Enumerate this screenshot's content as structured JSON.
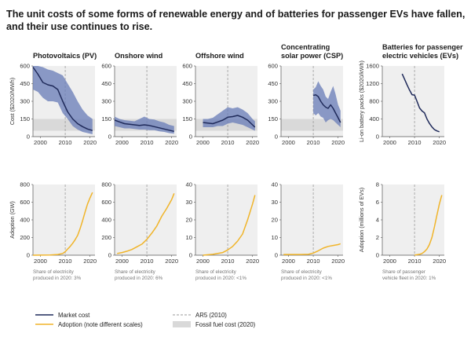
{
  "title_lines": [
    "The unit costs of some forms of renewable energy and of batteries for passenger EVs have fallen,",
    "and their use continues to rise."
  ],
  "colors": {
    "market_cost": "#1f2a5a",
    "band": "#6c7fb8",
    "adoption": "#f0b429",
    "fossil": "#d9d9d9",
    "panel_bg": "#efefef",
    "ar5": "#9a9a9a"
  },
  "legend": {
    "market_cost": "Market cost",
    "adoption": "Adoption (note different scales)",
    "ar5": "AR5 (2010)",
    "fossil": "Fossil fuel cost (2020)"
  },
  "chart_data": [
    {
      "type": "area",
      "name": "pv-cost",
      "title_lines": [
        "Photovoltaics (PV)"
      ],
      "ylabel": "Cost ($2020/MWh)",
      "xlim": [
        1997,
        2022
      ],
      "xticks": [
        2000,
        2010,
        2020
      ],
      "ylim": [
        0,
        600
      ],
      "yticks": [
        0,
        150,
        300,
        450,
        600
      ],
      "ar5": 2010,
      "fossil": [
        50,
        150
      ],
      "x": [
        1997,
        1999,
        2001,
        2003,
        2005,
        2007,
        2009,
        2011,
        2013,
        2015,
        2017,
        2019,
        2021
      ],
      "lower": [
        400,
        380,
        330,
        300,
        300,
        290,
        200,
        150,
        90,
        60,
        40,
        30,
        20
      ],
      "upper": [
        600,
        600,
        590,
        570,
        560,
        540,
        520,
        450,
        380,
        300,
        230,
        180,
        150
      ],
      "values": [
        590,
        530,
        460,
        440,
        430,
        400,
        300,
        210,
        150,
        110,
        85,
        65,
        52
      ]
    },
    {
      "type": "area",
      "name": "wind-cost",
      "title_lines": [
        "Onshore wind"
      ],
      "ylabel": "",
      "xlim": [
        1997,
        2022
      ],
      "xticks": [
        2000,
        2010,
        2020
      ],
      "ylim": [
        0,
        600
      ],
      "yticks": [
        0,
        150,
        300,
        450,
        600
      ],
      "ar5": 2010,
      "fossil": [
        50,
        150
      ],
      "x": [
        1997,
        1999,
        2001,
        2003,
        2005,
        2007,
        2009,
        2011,
        2013,
        2015,
        2017,
        2019,
        2021
      ],
      "lower": [
        90,
        80,
        70,
        70,
        65,
        60,
        60,
        55,
        55,
        45,
        40,
        30,
        25
      ],
      "upper": [
        170,
        150,
        140,
        135,
        130,
        150,
        170,
        150,
        145,
        130,
        120,
        100,
        90
      ],
      "values": [
        140,
        125,
        110,
        105,
        100,
        95,
        100,
        95,
        85,
        75,
        65,
        55,
        45
      ]
    },
    {
      "type": "area",
      "name": "offshore-cost",
      "title_lines": [
        "Offshore wind"
      ],
      "ylabel": "",
      "xlim": [
        1997,
        2022
      ],
      "xticks": [
        2000,
        2010,
        2020
      ],
      "ylim": [
        0,
        600
      ],
      "yticks": [
        0,
        150,
        300,
        450,
        600
      ],
      "ar5": 2010,
      "fossil": [
        50,
        150
      ],
      "x": [
        2000,
        2002,
        2004,
        2006,
        2008,
        2010,
        2012,
        2014,
        2016,
        2018,
        2020,
        2021
      ],
      "lower": [
        80,
        80,
        80,
        90,
        90,
        110,
        120,
        110,
        100,
        80,
        60,
        50
      ],
      "upper": [
        150,
        150,
        160,
        190,
        220,
        250,
        240,
        250,
        230,
        200,
        150,
        130
      ],
      "values": [
        120,
        115,
        110,
        125,
        140,
        165,
        170,
        180,
        165,
        140,
        100,
        80
      ]
    },
    {
      "type": "area",
      "name": "csp-cost",
      "title_lines": [
        "Concentrating",
        "solar power (CSP)"
      ],
      "ylabel": "",
      "xlim": [
        1997,
        2022
      ],
      "xticks": [
        2000,
        2010,
        2020
      ],
      "ylim": [
        0,
        600
      ],
      "yticks": [
        0,
        150,
        300,
        450,
        600
      ],
      "ar5": 2010,
      "fossil": [
        50,
        150
      ],
      "x": [
        2010,
        2011,
        2012,
        2013,
        2014,
        2015,
        2016,
        2017,
        2018,
        2019,
        2020,
        2021
      ],
      "lower": [
        200,
        180,
        200,
        170,
        160,
        120,
        140,
        150,
        140,
        120,
        100,
        80
      ],
      "upper": [
        400,
        420,
        470,
        430,
        400,
        340,
        320,
        380,
        430,
        360,
        270,
        220
      ],
      "values": [
        350,
        355,
        340,
        300,
        270,
        250,
        240,
        270,
        240,
        200,
        160,
        120
      ]
    },
    {
      "type": "line",
      "name": "ev-cost",
      "title_lines": [
        "Batteries for passenger",
        "electric vehicles (EVs)"
      ],
      "ylabel": "Li-on battery packs ($2020/kWh)",
      "xlim": [
        1997,
        2022
      ],
      "xticks": [
        2000,
        2010,
        2020
      ],
      "ylim": [
        0,
        1600
      ],
      "yticks": [
        0,
        400,
        800,
        1200,
        1600
      ],
      "ar5": 2010,
      "x": [
        2005,
        2006,
        2007,
        2008,
        2009,
        2010,
        2011,
        2012,
        2013,
        2014,
        2015,
        2016,
        2017,
        2018,
        2019,
        2020
      ],
      "values": [
        1420,
        1300,
        1170,
        1050,
        950,
        940,
        800,
        650,
        580,
        540,
        400,
        300,
        220,
        160,
        130,
        110
      ]
    },
    {
      "type": "line",
      "name": "pv-adoption",
      "ylabel": "Adoption (GW)",
      "xlim": [
        1997,
        2022
      ],
      "xticks": [
        2000,
        2010,
        2020
      ],
      "ylim": [
        0,
        800
      ],
      "yticks": [
        0,
        200,
        400,
        600,
        800
      ],
      "ar5": 2010,
      "x": [
        1997,
        2000,
        2004,
        2007,
        2009,
        2010,
        2011,
        2012,
        2013,
        2014,
        2015,
        2016,
        2017,
        2018,
        2019,
        2020,
        2021
      ],
      "values": [
        0,
        1,
        3,
        8,
        20,
        40,
        70,
        100,
        135,
        175,
        225,
        300,
        390,
        490,
        580,
        650,
        710
      ],
      "note_lines": [
        "Share of electricity",
        "produced in 2020: 3%"
      ]
    },
    {
      "type": "line",
      "name": "wind-adoption",
      "ylabel": "",
      "xlim": [
        1997,
        2022
      ],
      "xticks": [
        2000,
        2010,
        2020
      ],
      "ylim": [
        0,
        800
      ],
      "yticks": [
        0,
        200,
        400,
        600,
        800
      ],
      "ar5": 2010,
      "x": [
        1998,
        2000,
        2002,
        2004,
        2006,
        2008,
        2010,
        2012,
        2014,
        2016,
        2018,
        2020,
        2021
      ],
      "values": [
        20,
        30,
        45,
        65,
        95,
        125,
        180,
        250,
        330,
        440,
        530,
        630,
        700
      ],
      "note_lines": [
        "Share of electricity",
        "produced in 2020: 6%"
      ]
    },
    {
      "type": "line",
      "name": "offshore-adoption",
      "ylabel": "",
      "xlim": [
        1997,
        2022
      ],
      "xticks": [
        2000,
        2010,
        2020
      ],
      "ylim": [
        0,
        40
      ],
      "yticks": [
        0,
        10,
        20,
        30,
        40
      ],
      "ar5": 2010,
      "x": [
        2000,
        2004,
        2008,
        2010,
        2012,
        2014,
        2016,
        2018,
        2020,
        2021
      ],
      "values": [
        0,
        0.5,
        1.5,
        3,
        5,
        8,
        12,
        20,
        29,
        34
      ],
      "note_lines": [
        "Share of electricity",
        "produced in 2020: <1%"
      ]
    },
    {
      "type": "line",
      "name": "csp-adoption",
      "ylabel": "",
      "xlim": [
        1997,
        2022
      ],
      "xticks": [
        2000,
        2010,
        2020
      ],
      "ylim": [
        0,
        40
      ],
      "yticks": [
        0,
        10,
        20,
        30,
        40
      ],
      "ar5": 2010,
      "x": [
        1998,
        2005,
        2008,
        2010,
        2012,
        2014,
        2016,
        2018,
        2020,
        2021
      ],
      "values": [
        0.4,
        0.4,
        0.5,
        1.2,
        2.5,
        4,
        5,
        5.5,
        6,
        6.5
      ],
      "note_lines": [
        "Share of electricity",
        "produced in 2020: <1%"
      ]
    },
    {
      "type": "line",
      "name": "ev-adoption",
      "ylabel": "Adoption (millions of EVs)",
      "xlim": [
        1997,
        2022
      ],
      "xticks": [
        2000,
        2010,
        2020
      ],
      "ylim": [
        0,
        8
      ],
      "yticks": [
        0,
        2,
        4,
        6,
        8
      ],
      "ar5": 2010,
      "x": [
        2010,
        2011,
        2012,
        2013,
        2014,
        2015,
        2016,
        2017,
        2018,
        2019,
        2020,
        2021
      ],
      "values": [
        0.01,
        0.05,
        0.1,
        0.2,
        0.4,
        0.7,
        1.2,
        2,
        3.2,
        4.5,
        5.8,
        6.8
      ],
      "note_lines": [
        "Share of passenger",
        "vehicle fleet in 2020: 1%"
      ]
    }
  ]
}
